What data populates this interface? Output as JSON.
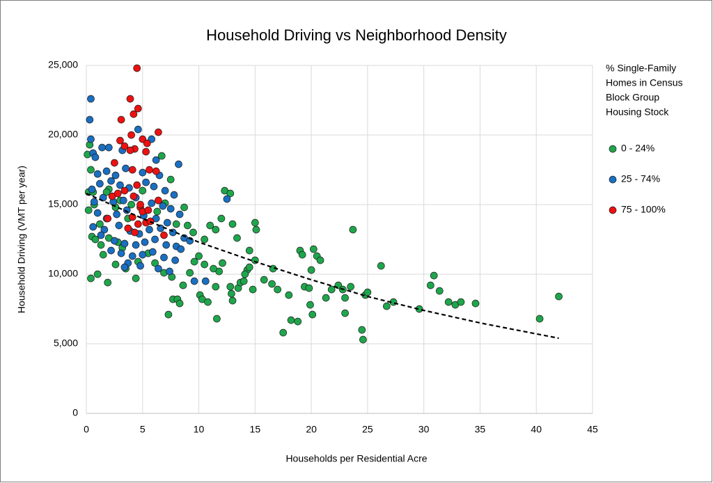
{
  "chart_data": {
    "type": "scatter",
    "title": "Household Driving vs Neighborhood Density",
    "x_label": "Households per Residential Acre",
    "y_label": "Household Driving  (VMT per year)",
    "legend_title": [
      "% Single-Family",
      "Homes in Census",
      "Block Group",
      "Housing Stock"
    ],
    "legend_position": "right",
    "grid": true,
    "xlim": [
      0,
      45
    ],
    "ylim": [
      0,
      25000
    ],
    "xticks": [
      0,
      5,
      10,
      15,
      20,
      25,
      30,
      35,
      40,
      45
    ],
    "yticks": [
      0,
      {
        "value": 5000,
        "label": "5,000"
      },
      {
        "value": 10000,
        "label": "10,000"
      },
      {
        "value": 15000,
        "label": "15,000"
      },
      {
        "value": 20000,
        "label": "20,000"
      },
      {
        "value": 25000,
        "label": "25,000"
      }
    ],
    "series": [
      {
        "name": "0 - 24%",
        "color": "#1fa64c",
        "x": [
          0.1,
          0.3,
          0.4,
          0.2,
          0.6,
          0.2,
          0.5,
          0.4,
          1.0,
          1.9,
          0.8,
          1.3,
          2.0,
          2.8,
          3.2,
          1.5,
          2.6,
          3.5,
          4.4,
          4.6,
          5.5,
          6.1,
          6.9,
          7.3,
          7.7,
          8.1,
          8.3,
          7.6,
          8.6,
          9.2,
          9.6,
          10.0,
          10.5,
          10.1,
          10.3,
          10.8,
          11.5,
          11.6,
          11.8,
          11.3,
          12.1,
          12.8,
          12.9,
          13.0,
          13.5,
          13.7,
          14.0,
          14.3,
          14.1,
          14.5,
          14.8,
          15.0,
          10.5,
          11.0,
          11.5,
          12.0,
          12.3,
          12.8,
          13.0,
          13.4,
          15.0,
          15.1,
          14.5,
          15.8,
          16.5,
          16.6,
          17.0,
          17.5,
          18.0,
          18.2,
          18.8,
          19.0,
          19.2,
          19.4,
          19.8,
          19.9,
          20.0,
          20.1,
          20.2,
          20.5,
          20.8,
          21.3,
          21.8,
          22.4,
          22.8,
          23.0,
          23.0,
          23.7,
          23.5,
          24.5,
          24.6,
          24.8,
          25.0,
          26.2,
          26.7,
          27.3,
          29.6,
          30.6,
          30.9,
          31.4,
          32.2,
          32.8,
          33.3,
          34.6,
          40.3,
          42.0,
          6.7,
          5.0,
          2.0,
          3.7,
          4.0,
          6.3,
          7.0,
          8.7,
          9.0,
          9.5,
          8.0,
          7.5,
          1.8,
          3.0,
          2.6,
          1.2,
          0.7
        ],
        "values": [
          18600,
          19300,
          17500,
          15900,
          15900,
          14600,
          12700,
          9700,
          10000,
          9400,
          12500,
          12100,
          12600,
          12300,
          11900,
          11400,
          10700,
          10400,
          9700,
          10900,
          11500,
          10800,
          10100,
          7100,
          8200,
          8200,
          7900,
          9800,
          9200,
          10100,
          10900,
          11300,
          10700,
          8500,
          8200,
          8000,
          9100,
          6800,
          10200,
          10400,
          10800,
          9100,
          8600,
          8100,
          9000,
          9400,
          9500,
          10300,
          10000,
          10500,
          8900,
          11000,
          12500,
          13500,
          13200,
          14000,
          16000,
          15800,
          13600,
          12600,
          13700,
          13200,
          11700,
          9600,
          9300,
          10400,
          8900,
          5800,
          8500,
          6700,
          6600,
          11700,
          11400,
          9100,
          9000,
          7800,
          10300,
          7100,
          11800,
          11300,
          11000,
          8300,
          8900,
          9200,
          8900,
          7200,
          8300,
          13200,
          9100,
          6000,
          5300,
          8500,
          8700,
          10600,
          7700,
          8000,
          7500,
          9200,
          9900,
          8800,
          8000,
          7800,
          8000,
          7900,
          6800,
          8400,
          18500,
          16000,
          16100,
          14000,
          15000,
          14500,
          15100,
          14800,
          13500,
          13000,
          13600,
          16800,
          15900,
          15300,
          14800,
          13600,
          15000
        ]
      },
      {
        "name": "25 - 74%",
        "color": "#1a6fc1",
        "x": [
          0.4,
          0.3,
          0.4,
          0.6,
          0.8,
          1.4,
          2.0,
          3.2,
          4.6,
          5.8,
          6.2,
          8.2,
          1.0,
          1.8,
          2.6,
          3.5,
          5.0,
          6.5,
          0.5,
          1.2,
          2.2,
          3.0,
          3.8,
          5.3,
          6.0,
          7.0,
          7.8,
          0.7,
          1.5,
          2.4,
          3.3,
          4.4,
          5.8,
          6.8,
          7.5,
          8.3,
          1.0,
          1.8,
          2.7,
          3.6,
          5.1,
          6.2,
          7.2,
          0.6,
          1.6,
          2.9,
          3.9,
          4.7,
          5.6,
          6.6,
          7.7,
          8.7,
          1.3,
          2.5,
          3.4,
          4.4,
          5.2,
          6.1,
          7.1,
          8.0,
          2.2,
          3.1,
          4.1,
          5.0,
          5.9,
          6.9,
          7.9,
          3.7,
          4.8,
          6.4,
          7.4,
          3.4,
          9.6,
          10.6,
          12.5,
          9.2,
          8.4
        ],
        "values": [
          22600,
          21100,
          19700,
          18700,
          18400,
          19100,
          19100,
          18900,
          20400,
          19700,
          18200,
          17900,
          17200,
          17400,
          17100,
          17600,
          17300,
          17100,
          16100,
          16500,
          16700,
          16400,
          16200,
          16600,
          16300,
          16000,
          15700,
          15200,
          15500,
          15200,
          15300,
          15500,
          15100,
          14900,
          14700,
          14300,
          14400,
          14000,
          14300,
          14600,
          14200,
          14000,
          13700,
          13400,
          13200,
          13500,
          13100,
          12900,
          13200,
          13300,
          13000,
          12600,
          12800,
          12400,
          12200,
          12100,
          12300,
          12500,
          12100,
          12000,
          11700,
          11500,
          11300,
          11400,
          11600,
          11200,
          11000,
          10800,
          10600,
          10400,
          10200,
          10500,
          9500,
          9500,
          15400,
          12400,
          11800
        ]
      },
      {
        "name": "75 - 100%",
        "color": "#ee1111",
        "x": [
          4.5,
          3.9,
          4.2,
          4.6,
          3.1,
          6.4,
          4.0,
          3.0,
          3.4,
          5.0,
          5.4,
          5.3,
          4.3,
          3.9,
          2.5,
          4.1,
          5.6,
          6.2,
          2.3,
          2.8,
          4.5,
          3.4,
          4.2,
          4.8,
          5.0,
          5.5,
          4.1,
          4.6,
          5.3,
          3.7,
          1.9,
          6.9,
          4.3,
          6.4,
          4.8,
          5.7
        ],
        "values": [
          24800,
          22600,
          21500,
          21900,
          21100,
          20200,
          20000,
          19600,
          19200,
          19700,
          19400,
          18800,
          19000,
          18900,
          18000,
          17500,
          17500,
          17400,
          15600,
          15800,
          16400,
          16000,
          15600,
          14800,
          14500,
          14600,
          14100,
          13600,
          13700,
          13300,
          14000,
          12800,
          13000,
          15300,
          15000,
          13800
        ]
      }
    ],
    "trendline": {
      "color": "#000000",
      "x": [
        0,
        5,
        10,
        15,
        20,
        25,
        30,
        35,
        42
      ],
      "values": [
        15800,
        14000,
        12300,
        10900,
        9600,
        8400,
        7400,
        6500,
        5400
      ]
    }
  }
}
